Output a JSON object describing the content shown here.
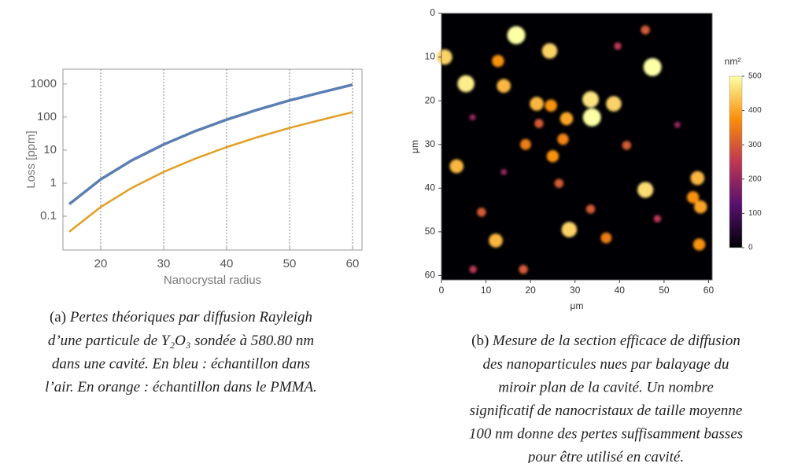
{
  "chart_data": [
    {
      "type": "line",
      "xlabel": "Nanocrystal radius",
      "ylabel": "Loss [ppm]",
      "x": [
        15,
        20,
        25,
        30,
        35,
        40,
        45,
        50,
        55,
        60
      ],
      "series": [
        {
          "color": "#5b7fb2",
          "values": [
            0.232,
            1.3,
            4.97,
            14.8,
            37.4,
            83.4,
            169,
            318,
            556,
            950
          ]
        },
        {
          "color": "#e19f24",
          "values": [
            0.034,
            0.19,
            0.73,
            2.19,
            5.5,
            12.3,
            24.9,
            46.9,
            82,
            140
          ]
        }
      ],
      "xlim": [
        14,
        61.5
      ],
      "xticks": [
        20,
        30,
        40,
        50,
        60
      ],
      "ylim": [
        0.0095,
        2800
      ],
      "yticks": [
        0.1,
        1,
        10,
        100,
        1000
      ],
      "log_y": true,
      "grid": "x",
      "caption_label": "(a)",
      "caption_lines": [
        "Pertes théoriques par diffusion Rayleigh",
        "d’une particule de Y₂O₃ sondée à 580.80 nm",
        "dans une cavité. En bleu : échantillon dans",
        "l’air. En orange : échantillon dans le PMMA."
      ]
    },
    {
      "type": "scatter",
      "xlabel": "μm",
      "ylabel": "μm",
      "colorbar_label": "nm²",
      "colormap": "inferno",
      "x": [
        16.8,
        47.4,
        33.8,
        0.7,
        5.5,
        14,
        24.3,
        33.5,
        38.7,
        21.4,
        24.6,
        28.1,
        21.9,
        18.9,
        25,
        3.4,
        27.3,
        41.6,
        45.8,
        57.5,
        56.5,
        12.2,
        9,
        28.7,
        37,
        57.9,
        58.2,
        45.8,
        12.7,
        39.6,
        26.4,
        18.4,
        7.1,
        48.5,
        33.5,
        7,
        53,
        14
      ],
      "y": [
        5,
        12.3,
        23.8,
        10,
        16.1,
        16.6,
        8.6,
        19.7,
        20.7,
        20.7,
        21.1,
        24.1,
        25.2,
        30,
        32.7,
        35,
        28.8,
        30.2,
        40.4,
        37.7,
        42.1,
        52,
        45.5,
        49.5,
        51.4,
        52.9,
        44.3,
        3.8,
        10.9,
        7.5,
        38.9,
        58.6,
        58.6,
        47,
        44.8,
        23.8,
        25.5,
        36.3
      ],
      "values": [
        500,
        500,
        500,
        450,
        480,
        420,
        450,
        470,
        450,
        420,
        380,
        400,
        300,
        350,
        380,
        420,
        360,
        300,
        460,
        420,
        380,
        420,
        300,
        450,
        350,
        380,
        400,
        300,
        380,
        250,
        300,
        300,
        250,
        250,
        300,
        200,
        200,
        200
      ],
      "xlim": [
        0,
        60.8
      ],
      "xticks": [
        0,
        10,
        20,
        30,
        40,
        50,
        60
      ],
      "ylim": [
        61,
        0
      ],
      "yticks": [
        0,
        10,
        20,
        30,
        40,
        50,
        60
      ],
      "clim": [
        0,
        500
      ],
      "cticks": [
        0,
        100,
        200,
        300,
        400,
        500
      ],
      "caption_label": "(b)",
      "caption_lines": [
        "Mesure de la section efficace de diffusion",
        "des nanoparticules nues par balayage du",
        "miroir plan de la cavité. Un nombre",
        "significatif de nanocristaux de taille moyenne",
        "100 nm donne des pertes suffisamment basses",
        "pour être utilisé en cavité."
      ]
    }
  ]
}
